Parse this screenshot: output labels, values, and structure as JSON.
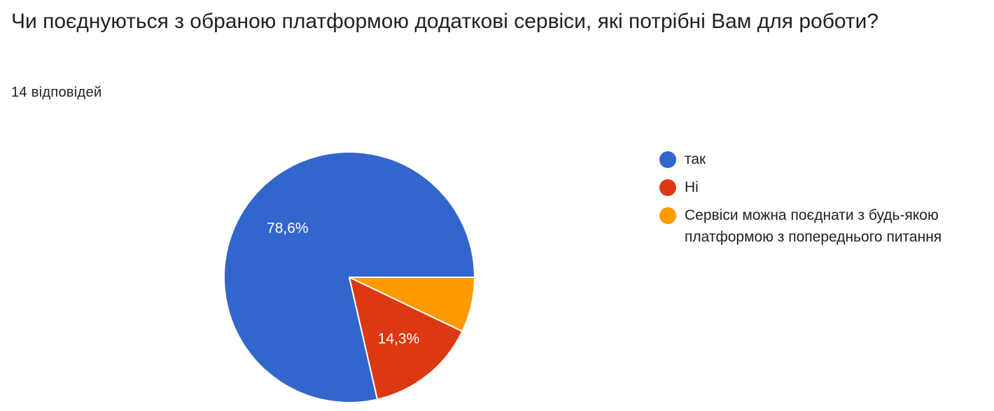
{
  "question": {
    "title": "Чи поєднуються з обраною платформою додаткові сервіси, які потрібні Вам для роботи?",
    "responses": "14 відповідей"
  },
  "chart_data": {
    "type": "pie",
    "title": "",
    "slices": [
      {
        "label": "так",
        "value": 78.6,
        "display": "78,6%",
        "color": "#3366cc"
      },
      {
        "label": "Ні",
        "value": 14.3,
        "display": "14,3%",
        "color": "#dc3912"
      },
      {
        "label": "Сервіси можна поєднати з будь-якою платформою з попереднього питання",
        "value": 7.1,
        "display": "",
        "color": "#ff9900"
      }
    ],
    "legend_position": "right",
    "start_angle": "3 o'clock",
    "direction": "counter-clockwise"
  }
}
